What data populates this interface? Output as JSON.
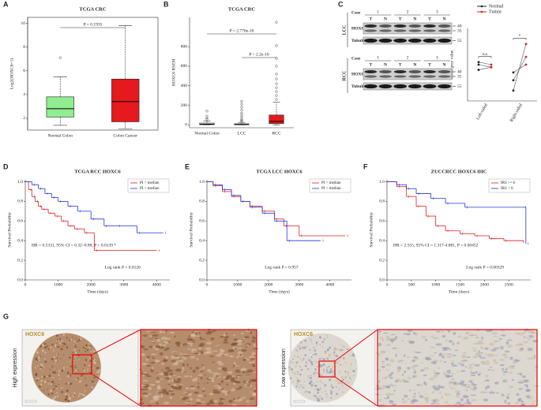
{
  "panels": [
    "A",
    "B",
    "C",
    "D",
    "E",
    "F",
    "G"
  ],
  "chart_data": [
    {
      "type": "box",
      "title": "TCGA CRC",
      "y_label": "Log2(HOXC6+1)",
      "categories": [
        "Normal Colon",
        "Colon Cancer"
      ],
      "colors": [
        "#90ee90",
        "#e41a1c"
      ],
      "boxes": [
        {
          "min": 1.4,
          "q1": 2.1,
          "median": 2.8,
          "q3": 3.8,
          "max": 5.5,
          "outliers": [
            7.1
          ]
        },
        {
          "min": 1.1,
          "q1": 1.7,
          "median": 3.4,
          "q3": 5.3,
          "max": 9.8,
          "outliers": []
        }
      ],
      "ylim": [
        1,
        10.5
      ],
      "yticks": [
        2,
        4,
        6,
        8,
        10
      ],
      "annotations": [
        "P = 0.1935"
      ]
    },
    {
      "type": "box",
      "title": "TCGA CRC",
      "y_label": "HOXC6 RSEM",
      "categories": [
        "Normal Colon",
        "LCC",
        "RCC"
      ],
      "colors": [
        "#ffffff",
        "#ffffff",
        "#e41a1c"
      ],
      "boxes": [
        {
          "min": 0,
          "q1": 2,
          "median": 6,
          "q3": 18,
          "max": 40,
          "outliers": [
            55,
            70,
            90,
            140
          ]
        },
        {
          "min": 0,
          "q1": 1,
          "median": 3,
          "q3": 10,
          "max": 25,
          "outliers": [
            35,
            45,
            60,
            80,
            100,
            120,
            150,
            180,
            210,
            240
          ]
        },
        {
          "min": 0,
          "q1": 12,
          "median": 35,
          "q3": 100,
          "max": 230,
          "outliers": [
            260,
            300,
            340,
            380,
            420,
            470,
            520,
            600,
            680,
            810,
            1050
          ]
        }
      ],
      "ylim": [
        -30,
        1100
      ],
      "yticks": [
        0,
        200,
        400,
        600,
        800
      ],
      "annotations": [
        "P = 2.776e-10",
        "P < 2.2e-16"
      ]
    },
    {
      "type": "paired",
      "y_label": "Mean grey value",
      "categories": [
        "Left-sided",
        "Right-sided"
      ],
      "series": [
        {
          "name": "Normal",
          "color": "#222222",
          "values": [
            [
              0.24,
              0.22,
              0.25
            ],
            [
              0.14,
              0.18,
              0.21
            ]
          ]
        },
        {
          "name": "Tumor",
          "color": "#e41a1c",
          "values": [
            [
              0.23,
              0.23,
              0.24
            ],
            [
              0.32,
              0.27,
              0.24
            ]
          ]
        }
      ],
      "ylim": [
        0.1,
        0.38
      ],
      "annotations": [
        "n.s",
        "*"
      ]
    },
    {
      "type": "survival",
      "title": "TCGA RCC HOXC6",
      "x_label": "Time (days)",
      "y_label": "Survival Probability",
      "series": [
        {
          "name": "PI > median",
          "color": "#e41a1c",
          "x": [
            0,
            100,
            200,
            300,
            400,
            500,
            700,
            900,
            1100,
            1300,
            1500,
            1800,
            2100,
            4000
          ],
          "values": [
            1.0,
            0.92,
            0.85,
            0.8,
            0.75,
            0.72,
            0.68,
            0.65,
            0.6,
            0.55,
            0.52,
            0.48,
            0.3,
            0.3
          ]
        },
        {
          "name": "PI < median",
          "color": "#2233dd",
          "x": [
            0,
            200,
            400,
            600,
            800,
            1000,
            1300,
            1600,
            2000,
            2400,
            2800,
            3400,
            4200
          ],
          "values": [
            1.0,
            0.97,
            0.93,
            0.88,
            0.84,
            0.8,
            0.75,
            0.7,
            0.62,
            0.55,
            0.55,
            0.48,
            0.48
          ]
        }
      ],
      "xlim": [
        0,
        4400
      ],
      "xticks": [
        0,
        1000,
        2000,
        3000,
        4000
      ],
      "ylim": [
        0,
        1.02
      ],
      "yticks": [
        {
          "value": 0,
          "label": "0.0"
        },
        {
          "value": 0.2,
          "label": "0.2"
        },
        {
          "value": 0.4,
          "label": "0.4"
        },
        {
          "value": 0.6,
          "label": "0.6"
        },
        {
          "value": 0.8,
          "label": "0.8"
        },
        {
          "value": 1,
          "label": "1.0"
        }
      ],
      "annotations": [
        "HR = 0.5331, 95% CI = 0.32~0.88, P = 0.0139 *",
        "Log rank P = 0.0126"
      ]
    },
    {
      "type": "survival",
      "title": "TCGA LCC HOXC6",
      "x_label": "Time (days)",
      "y_label": "Survival Probability",
      "series": [
        {
          "name": "PI > median",
          "color": "#e41a1c",
          "x": [
            0,
            200,
            500,
            800,
            1100,
            1400,
            1800,
            2200,
            2500,
            3000,
            4500
          ],
          "values": [
            1.0,
            0.96,
            0.9,
            0.85,
            0.8,
            0.75,
            0.7,
            0.62,
            0.55,
            0.45,
            0.45
          ]
        },
        {
          "name": "PI < median",
          "color": "#2233dd",
          "x": [
            0,
            200,
            500,
            800,
            1100,
            1400,
            1800,
            2200,
            2600,
            3700
          ],
          "values": [
            1.0,
            0.97,
            0.92,
            0.86,
            0.8,
            0.74,
            0.68,
            0.6,
            0.4,
            0.4
          ]
        }
      ],
      "xlim": [
        0,
        4700
      ],
      "xticks": [
        0,
        1000,
        2000,
        3000,
        4000
      ],
      "ylim": [
        0,
        1.02
      ],
      "yticks": [
        {
          "value": 0,
          "label": "0.0"
        },
        {
          "value": 0.2,
          "label": "0.2"
        },
        {
          "value": 0.4,
          "label": "0.4"
        },
        {
          "value": 0.6,
          "label": "0.6"
        },
        {
          "value": 0.8,
          "label": "0.8"
        },
        {
          "value": 1,
          "label": "1.0"
        }
      ],
      "annotations": [
        "Log rank P = 0.957"
      ]
    },
    {
      "type": "survival",
      "title": "ZUCCRCC HOXC6 IHC",
      "x_label": "Time (days)",
      "y_label": "Survival Probability",
      "series": [
        {
          "name": "IRS >= 6",
          "color": "#e41a1c",
          "x": [
            0,
            200,
            400,
            600,
            800,
            1000,
            1200,
            1500,
            1800,
            2100,
            2400,
            2800
          ],
          "values": [
            1.0,
            0.95,
            0.85,
            0.75,
            0.65,
            0.55,
            0.5,
            0.47,
            0.45,
            0.42,
            0.4,
            0.38
          ]
        },
        {
          "name": "IRS < 6",
          "color": "#2233dd",
          "x": [
            0,
            200,
            400,
            600,
            900,
            1200,
            1600,
            2800,
            2850
          ],
          "values": [
            1.0,
            0.97,
            0.93,
            0.88,
            0.83,
            0.78,
            0.74,
            0.74,
            0.37
          ]
        }
      ],
      "xlim": [
        0,
        2950
      ],
      "xticks": [
        0,
        500,
        1000,
        1500,
        2000,
        2500
      ],
      "ylim": [
        0,
        1.02
      ],
      "yticks": [
        {
          "value": 0,
          "label": "0.0"
        },
        {
          "value": 0.2,
          "label": "0.2"
        },
        {
          "value": 0.4,
          "label": "0.4"
        },
        {
          "value": 0.6,
          "label": "0.6"
        },
        {
          "value": 0.8,
          "label": "0.8"
        },
        {
          "value": 1,
          "label": "1.0"
        }
      ],
      "annotations": [
        "HR = 2.555, 95% CI = 1.317-4.881, P = 0.00452",
        "Log rank P = 0.00329"
      ]
    }
  ],
  "blots": [
    {
      "label": "LCC",
      "case_label": "Case",
      "cases": [
        "1",
        "2",
        "3"
      ],
      "lanes": [
        "T",
        "N",
        "T",
        "N",
        "T",
        "N"
      ],
      "rows": [
        "HOXC6",
        "Tubulin"
      ],
      "markers": [
        "40",
        "35",
        "55"
      ]
    },
    {
      "label": "RCC",
      "case_label": "Case",
      "cases": [
        "1",
        "2",
        "3"
      ],
      "lanes": [
        "T",
        "N",
        "T",
        "N",
        "T",
        "N"
      ],
      "rows": [
        "HOXC6",
        "Tubulin"
      ],
      "markers": [
        "40",
        "35",
        "55"
      ]
    }
  ],
  "panel_g": {
    "stain": [
      "HOXC6",
      "HOXC6"
    ],
    "labels": [
      "High expression",
      "Low expression"
    ]
  }
}
